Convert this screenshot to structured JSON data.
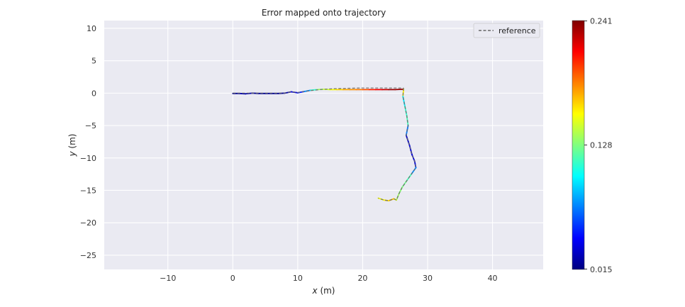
{
  "chart_data": {
    "type": "line",
    "title": "Error mapped onto trajectory",
    "xlabel_var": "x",
    "xlabel_unit": "(m)",
    "ylabel_var": "y",
    "ylabel_unit": "(m)",
    "xlim": [
      -19.8,
      47.8
    ],
    "ylim": [
      -27.2,
      11.2
    ],
    "xticks": [
      -10,
      0,
      10,
      20,
      30,
      40
    ],
    "yticks": [
      10,
      5,
      0,
      -5,
      -10,
      -15,
      -20,
      -25
    ],
    "grid": true,
    "legend": {
      "position": "top-right",
      "entries": [
        {
          "label": "reference",
          "style": "dashed",
          "color": "#666666"
        }
      ]
    },
    "colorbar": {
      "min": 0.015,
      "max": 0.241,
      "tick_labels": [
        "0.241",
        "0.128",
        "0.015"
      ],
      "colormap": "jet"
    },
    "series": [
      {
        "name": "reference",
        "style": "dashed",
        "x": [
          0,
          2,
          4,
          6,
          8,
          9,
          10,
          12,
          14,
          16,
          18,
          20,
          22,
          24,
          26.3
        ],
        "y": [
          0,
          0,
          0,
          0,
          0,
          0.2,
          0.1,
          0.4,
          0.6,
          0.7,
          0.75,
          0.8,
          0.8,
          0.8,
          0.8
        ]
      },
      {
        "name": "reference",
        "style": "dashed",
        "x": [
          26.3,
          26.2,
          26.5,
          26.8,
          27.0,
          26.7,
          27.2,
          27.6,
          28.0,
          28.2,
          27.5,
          26.8,
          26.1,
          25.6,
          25.2,
          24.8,
          24.0,
          23.3,
          22.4
        ],
        "y": [
          0.8,
          -0.5,
          -2.0,
          -3.5,
          -5.0,
          -6.5,
          -8.0,
          -9.5,
          -10.5,
          -11.5,
          -12.5,
          -13.5,
          -14.5,
          -15.5,
          -16.5,
          -16.3,
          -16.6,
          -16.5,
          -16.2
        ]
      }
    ],
    "trajectory": {
      "x": [
        0,
        1,
        2,
        3,
        4,
        5,
        6,
        7,
        8,
        9,
        10,
        11,
        12,
        13,
        14,
        15,
        16,
        17,
        18,
        19,
        20,
        21,
        22,
        23,
        24,
        25,
        26.3,
        26.2,
        26.5,
        26.8,
        27.0,
        26.7,
        27.2,
        27.6,
        28.0,
        28.2,
        27.5,
        26.8,
        26.1,
        25.6,
        25.2,
        24.8,
        24.0,
        23.3,
        22.4
      ],
      "y": [
        -0.05,
        -0.05,
        -0.1,
        0,
        -0.05,
        -0.05,
        -0.05,
        -0.05,
        0,
        0.2,
        0.05,
        0.25,
        0.45,
        0.55,
        0.6,
        0.55,
        0.55,
        0.55,
        0.55,
        0.55,
        0.55,
        0.55,
        0.55,
        0.55,
        0.55,
        0.55,
        0.6,
        -0.5,
        -2.0,
        -3.5,
        -5.0,
        -6.5,
        -8.0,
        -9.5,
        -10.5,
        -11.5,
        -12.5,
        -13.5,
        -14.5,
        -15.5,
        -16.5,
        -16.3,
        -16.6,
        -16.5,
        -16.2
      ],
      "error": [
        0.02,
        0.02,
        0.03,
        0.02,
        0.02,
        0.02,
        0.02,
        0.02,
        0.02,
        0.03,
        0.04,
        0.06,
        0.09,
        0.13,
        0.14,
        0.15,
        0.16,
        0.17,
        0.18,
        0.18,
        0.19,
        0.2,
        0.21,
        0.22,
        0.23,
        0.24,
        0.23,
        0.09,
        0.1,
        0.12,
        0.11,
        0.03,
        0.03,
        0.04,
        0.03,
        0.04,
        0.11,
        0.12,
        0.13,
        0.13,
        0.14,
        0.16,
        0.18,
        0.15,
        0.16
      ]
    }
  }
}
